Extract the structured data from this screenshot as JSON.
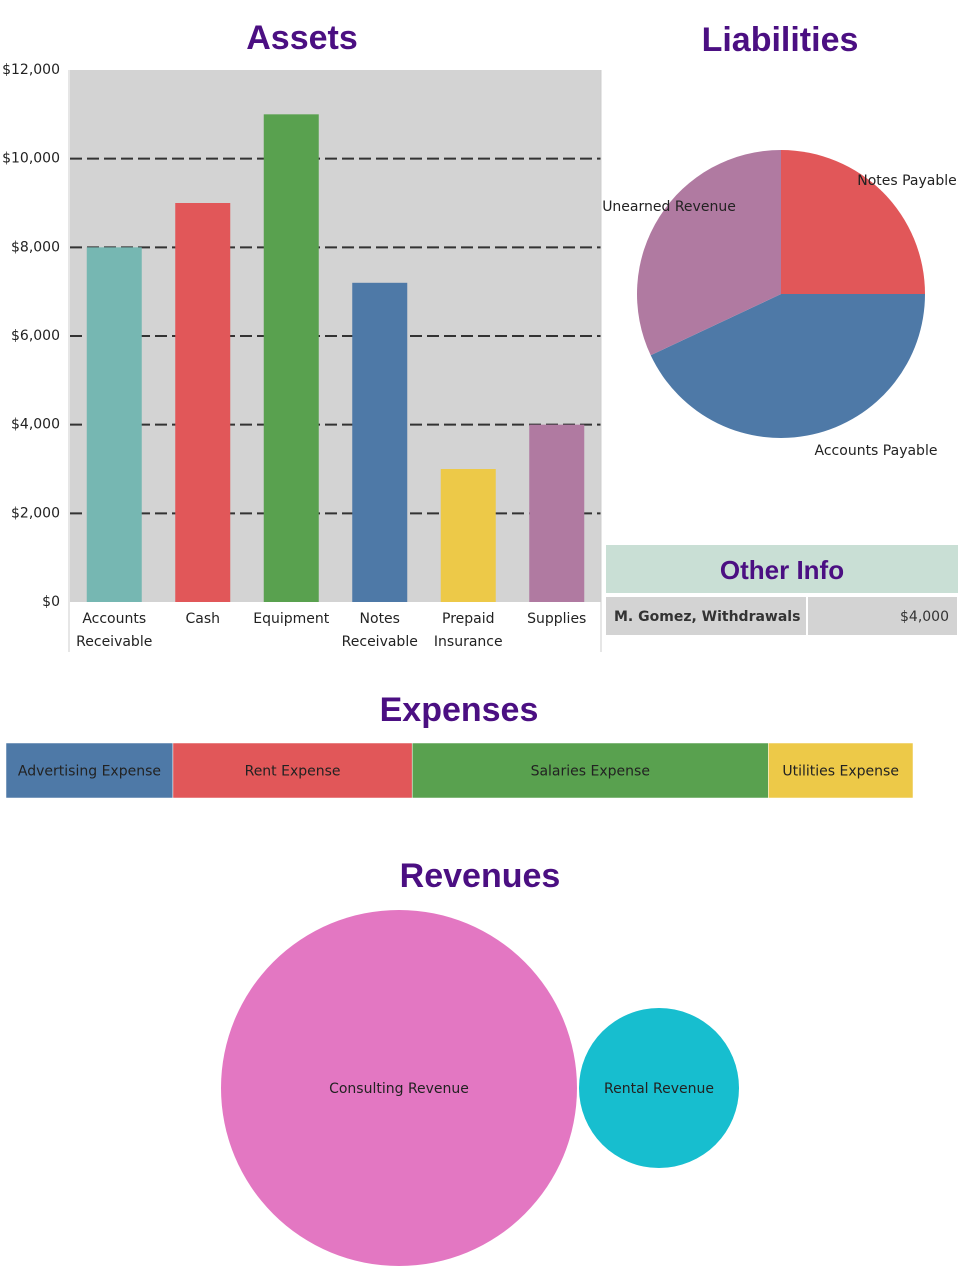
{
  "chart_data": [
    {
      "type": "bar",
      "title": "Assets",
      "categories": [
        "Accounts Receivable",
        "Cash",
        "Equipment",
        "Notes Receivable",
        "Prepaid Insurance",
        "Supplies"
      ],
      "values": [
        8000,
        9000,
        11000,
        7200,
        3000,
        4000
      ],
      "colors": [
        "#76b7b2",
        "#e15759",
        "#59a14f",
        "#4e79a7",
        "#edc948",
        "#b07aa1"
      ],
      "ylim": [
        0,
        12000
      ],
      "yticks": [
        {
          "value": 0,
          "label": "$0"
        },
        {
          "value": 2000,
          "label": "$2,000"
        },
        {
          "value": 4000,
          "label": "$4,000"
        },
        {
          "value": 6000,
          "label": "$6,000"
        },
        {
          "value": 8000,
          "label": "$8,000"
        },
        {
          "value": 10000,
          "label": "$10,000"
        },
        {
          "value": 12000,
          "label": "$12,000"
        }
      ],
      "grid": true
    },
    {
      "type": "pie",
      "title": "Liabilities",
      "categories": [
        "Notes Payable",
        "Accounts Payable",
        "Unearned Revenue"
      ],
      "values": [
        25,
        43,
        32
      ],
      "colors": [
        "#e15759",
        "#4e79a7",
        "#b07aa1"
      ]
    },
    {
      "type": "stacked_bar",
      "title": "Expenses",
      "categories": [
        "Advertising Expense",
        "Rent Expense",
        "Salaries Expense",
        "Utilities Expense"
      ],
      "values": [
        1500,
        2150,
        3200,
        1300
      ],
      "colors": [
        "#4e79a7",
        "#e15759",
        "#59a14f",
        "#edc948"
      ]
    },
    {
      "type": "bubble",
      "title": "Revenues",
      "categories": [
        "Consulting Revenue",
        "Rental Revenue"
      ],
      "values": [
        9900,
        2000
      ],
      "colors": [
        "#e377c2",
        "#17becf"
      ]
    }
  ],
  "other_info": {
    "title": "Other Info",
    "rows": [
      [
        "M. Gomez, Withdrawals",
        "$4,000"
      ]
    ]
  }
}
